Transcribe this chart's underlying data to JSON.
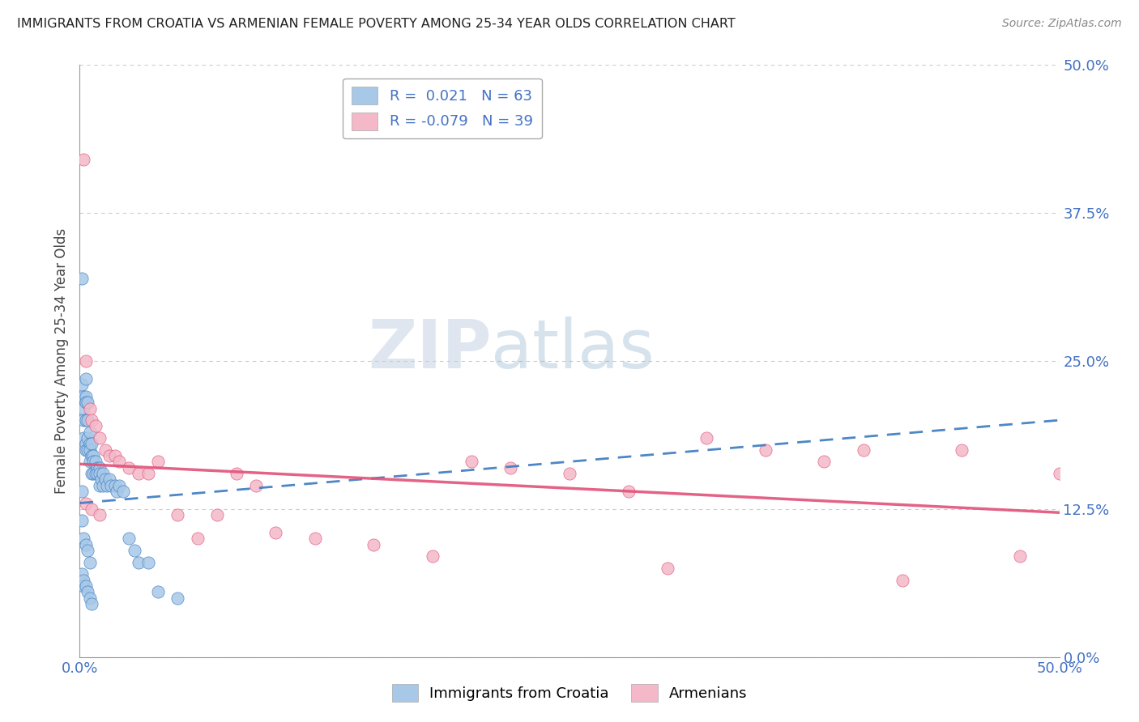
{
  "title": "IMMIGRANTS FROM CROATIA VS ARMENIAN FEMALE POVERTY AMONG 25-34 YEAR OLDS CORRELATION CHART",
  "source": "Source: ZipAtlas.com",
  "ylabel": "Female Poverty Among 25-34 Year Olds",
  "xlim": [
    0.0,
    0.5
  ],
  "ylim": [
    0.0,
    0.5
  ],
  "ytick_values": [
    0.0,
    0.125,
    0.25,
    0.375,
    0.5
  ],
  "watermark_zip": "ZIP",
  "watermark_atlas": "atlas",
  "legend_r1": "R =  0.021",
  "legend_n1": "N = 63",
  "legend_r2": "R = -0.079",
  "legend_n2": "N = 39",
  "blue_color": "#a8c8e8",
  "pink_color": "#f4b8c8",
  "blue_line_color": "#3a7abf",
  "pink_line_color": "#e0527a",
  "title_color": "#222222",
  "source_color": "#888888",
  "axis_label_color": "#4472c4",
  "grid_color": "#cccccc",
  "blue_trend_x": [
    0.0,
    0.5
  ],
  "blue_trend_y": [
    0.13,
    0.2
  ],
  "pink_trend_x": [
    0.0,
    0.5
  ],
  "pink_trend_y": [
    0.163,
    0.122
  ],
  "croatia_x": [
    0.001,
    0.001,
    0.001,
    0.002,
    0.002,
    0.002,
    0.002,
    0.002,
    0.003,
    0.003,
    0.003,
    0.003,
    0.003,
    0.003,
    0.004,
    0.004,
    0.004,
    0.004,
    0.005,
    0.005,
    0.005,
    0.005,
    0.006,
    0.006,
    0.006,
    0.007,
    0.007,
    0.007,
    0.008,
    0.008,
    0.009,
    0.009,
    0.01,
    0.01,
    0.01,
    0.011,
    0.012,
    0.012,
    0.013,
    0.014,
    0.015,
    0.016,
    0.018,
    0.019,
    0.02,
    0.022,
    0.025,
    0.028,
    0.03,
    0.035,
    0.04,
    0.05,
    0.001,
    0.002,
    0.003,
    0.004,
    0.005,
    0.001,
    0.002,
    0.003,
    0.004,
    0.005,
    0.006
  ],
  "croatia_y": [
    0.32,
    0.23,
    0.14,
    0.22,
    0.21,
    0.2,
    0.185,
    0.06,
    0.235,
    0.22,
    0.215,
    0.2,
    0.18,
    0.175,
    0.215,
    0.2,
    0.185,
    0.175,
    0.19,
    0.18,
    0.175,
    0.165,
    0.18,
    0.17,
    0.155,
    0.17,
    0.165,
    0.155,
    0.165,
    0.155,
    0.16,
    0.155,
    0.16,
    0.155,
    0.145,
    0.15,
    0.155,
    0.145,
    0.15,
    0.145,
    0.15,
    0.145,
    0.145,
    0.14,
    0.145,
    0.14,
    0.1,
    0.09,
    0.08,
    0.08,
    0.055,
    0.05,
    0.115,
    0.1,
    0.095,
    0.09,
    0.08,
    0.07,
    0.065,
    0.06,
    0.055,
    0.05,
    0.045
  ],
  "armenian_x": [
    0.002,
    0.003,
    0.005,
    0.006,
    0.008,
    0.01,
    0.013,
    0.015,
    0.018,
    0.02,
    0.025,
    0.03,
    0.035,
    0.04,
    0.05,
    0.06,
    0.07,
    0.08,
    0.09,
    0.1,
    0.12,
    0.15,
    0.18,
    0.2,
    0.22,
    0.25,
    0.28,
    0.3,
    0.32,
    0.35,
    0.38,
    0.4,
    0.42,
    0.45,
    0.48,
    0.5,
    0.003,
    0.006,
    0.01
  ],
  "armenian_y": [
    0.42,
    0.25,
    0.21,
    0.2,
    0.195,
    0.185,
    0.175,
    0.17,
    0.17,
    0.165,
    0.16,
    0.155,
    0.155,
    0.165,
    0.12,
    0.1,
    0.12,
    0.155,
    0.145,
    0.105,
    0.1,
    0.095,
    0.085,
    0.165,
    0.16,
    0.155,
    0.14,
    0.075,
    0.185,
    0.175,
    0.165,
    0.175,
    0.065,
    0.175,
    0.085,
    0.155,
    0.13,
    0.125,
    0.12
  ]
}
